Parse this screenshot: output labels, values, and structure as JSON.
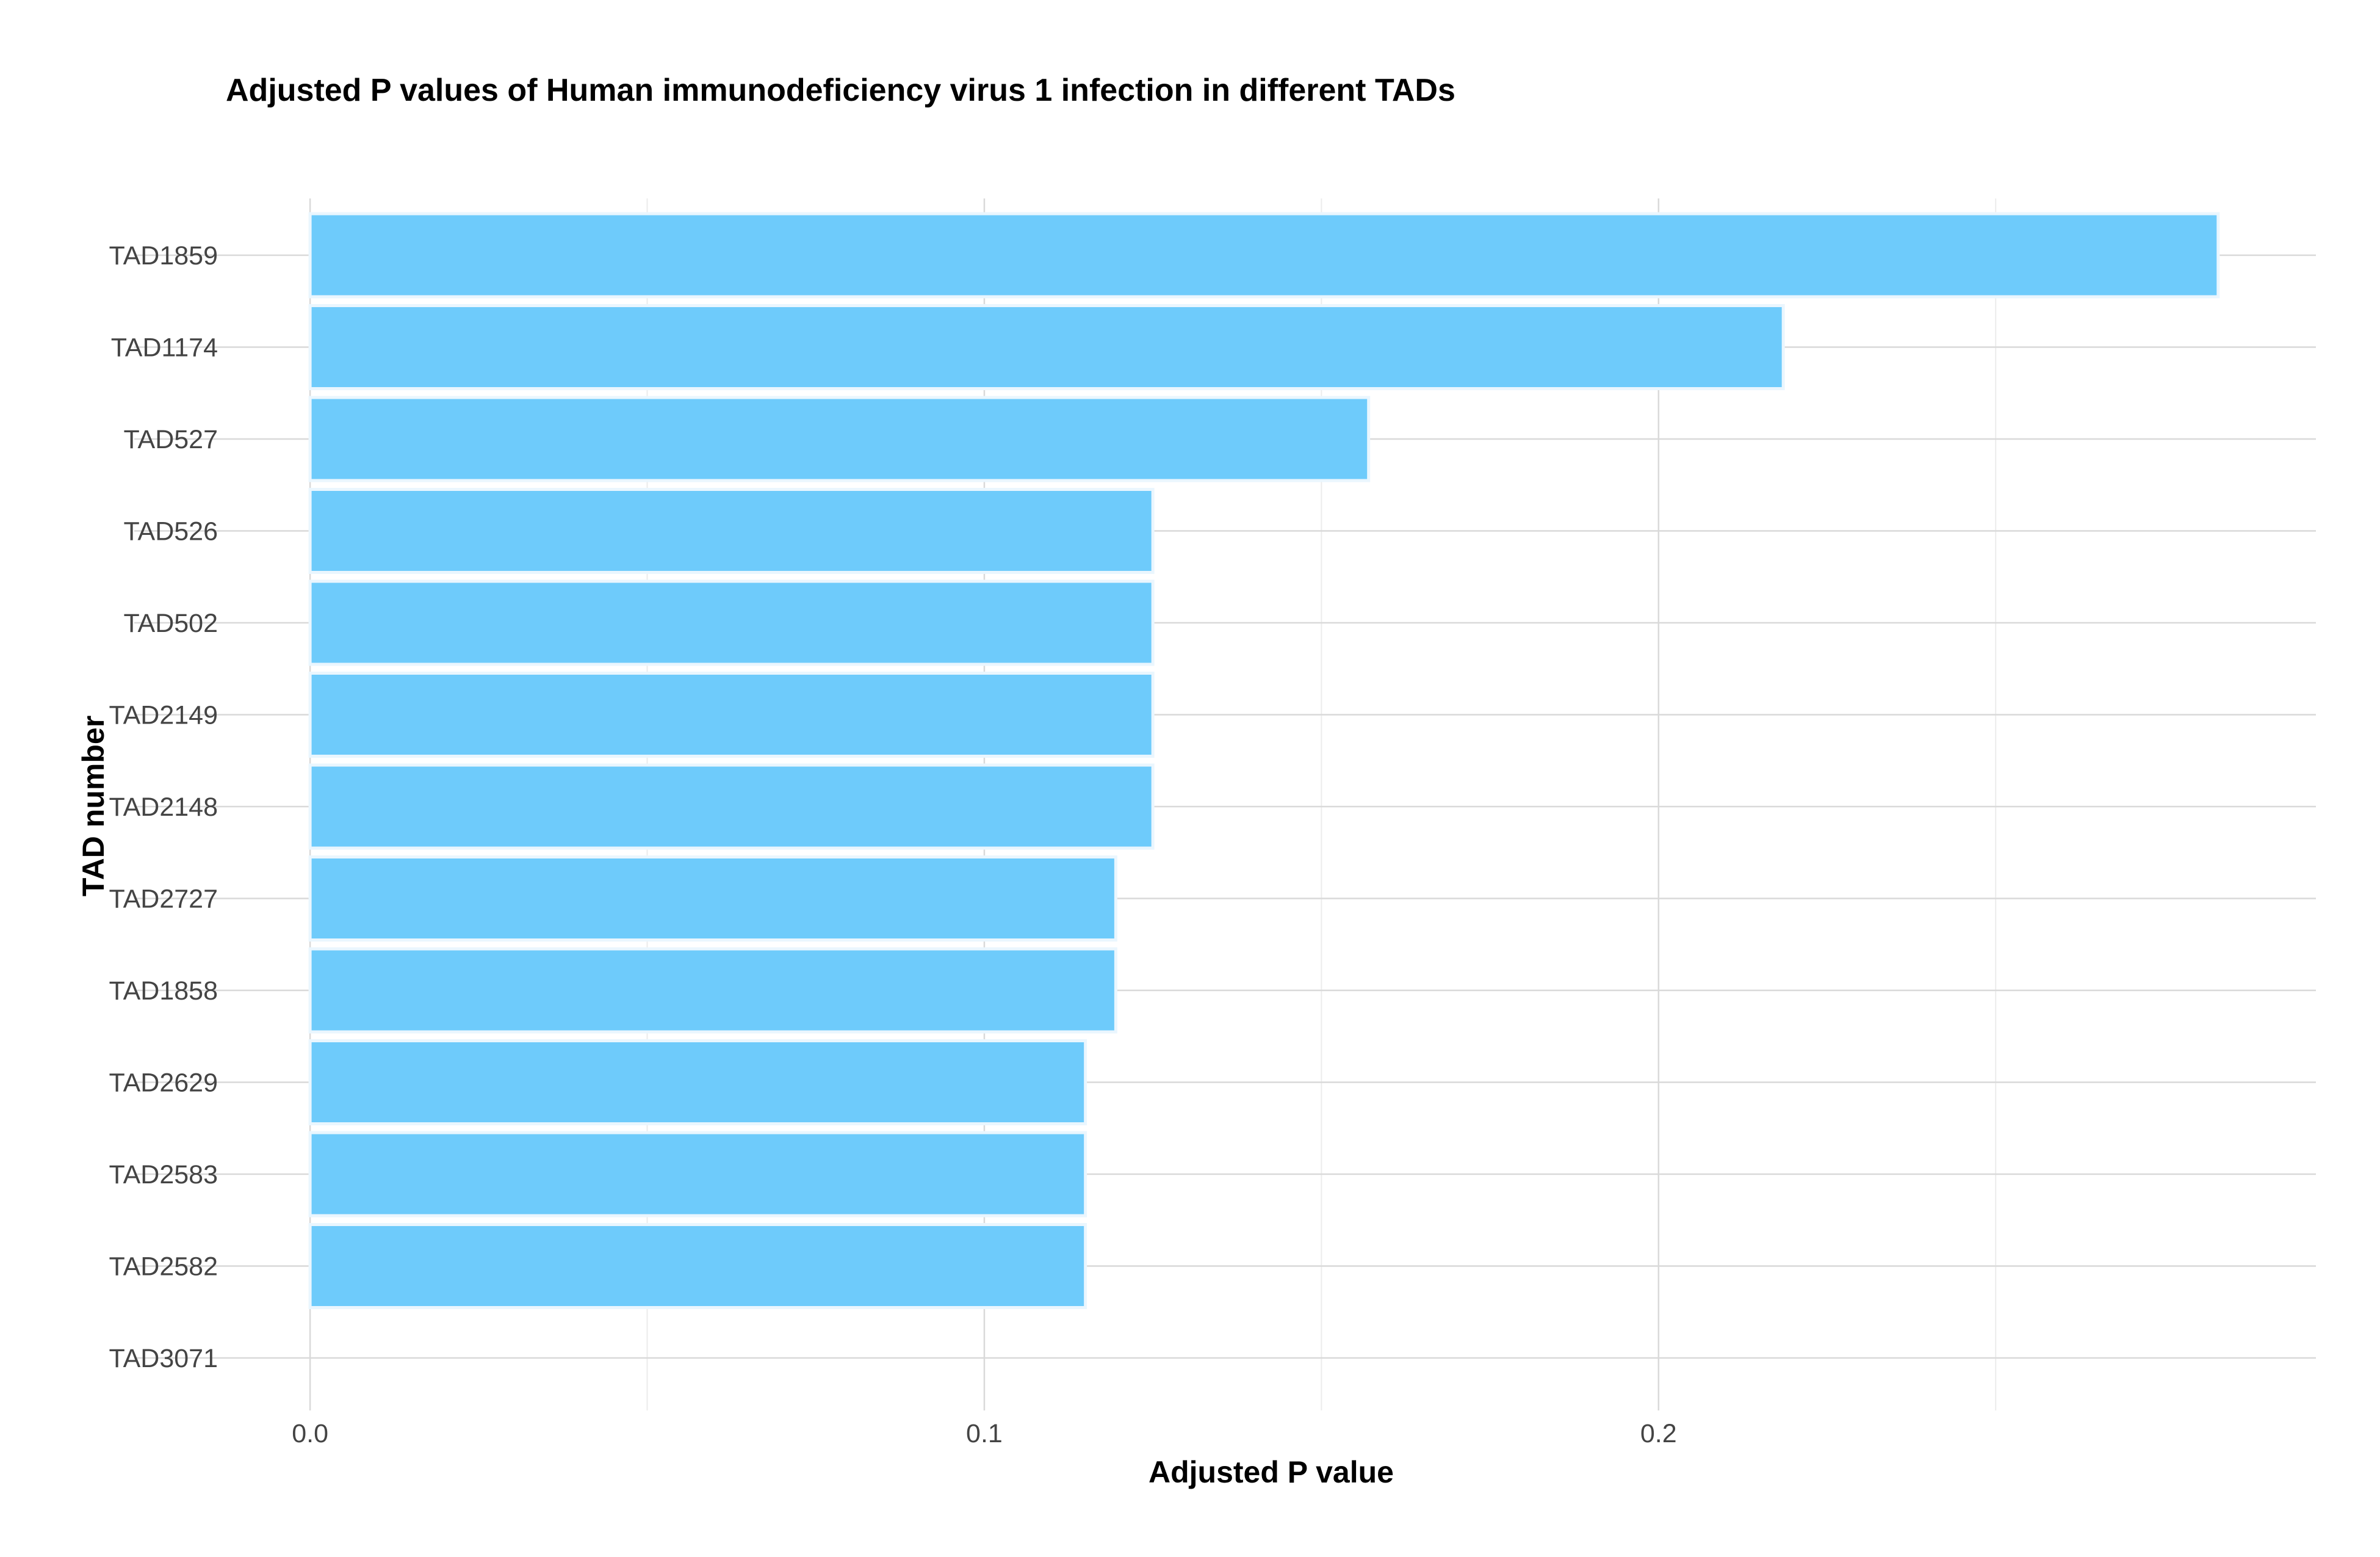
{
  "chart_data": {
    "type": "bar",
    "orientation": "horizontal",
    "title": "Adjusted P values of Human immunodeficiency virus 1 infection in different TADs",
    "xlabel": "Adjusted P value",
    "ylabel": "TAD number",
    "categories": [
      "TAD1859",
      "TAD1174",
      "TAD527",
      "TAD526",
      "TAD502",
      "TAD2149",
      "TAD2148",
      "TAD2727",
      "TAD1858",
      "TAD2629",
      "TAD2583",
      "TAD2582",
      "TAD3071"
    ],
    "values": [
      0.283,
      0.2185,
      0.157,
      0.125,
      0.125,
      0.125,
      0.125,
      0.1195,
      0.1195,
      0.115,
      0.115,
      0.115,
      0
    ],
    "xlim": [
      -0.0125,
      0.2975
    ],
    "xticks": [
      0.0,
      0.1,
      0.2
    ],
    "xtick_labels": [
      "0.0",
      "0.1",
      "0.2"
    ],
    "grid": true,
    "legend": "none",
    "colors": {
      "bar_fill": "#6ECBFB",
      "bar_stroke": "#EAF6FE",
      "grid_major": "#d9d9d9",
      "grid_minor": "#ececec"
    }
  }
}
